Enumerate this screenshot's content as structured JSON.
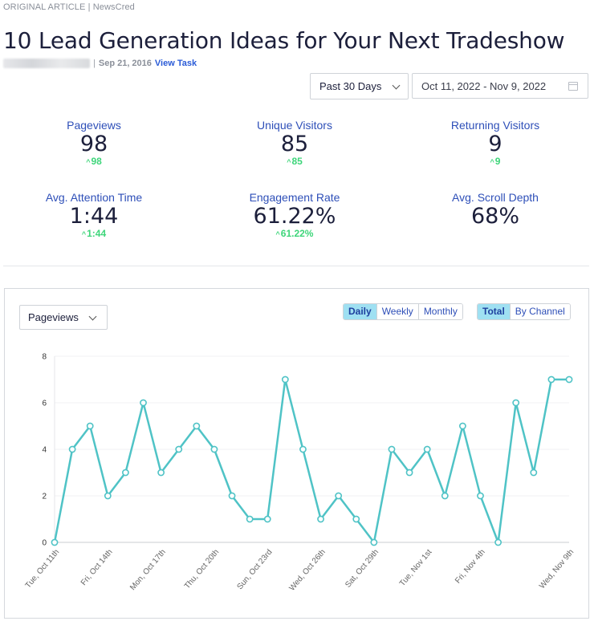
{
  "header": {
    "source_label": "ORIGINAL ARTICLE",
    "source_name": "NewsCred",
    "title": "10 Lead Generation Ideas for Your Next Tradeshow",
    "date": "Sep 21, 2016",
    "view_task": "View Task"
  },
  "filters": {
    "range": "Past 30 Days",
    "date_range": "Oct 11, 2022 - Nov 9, 2022"
  },
  "stats": [
    {
      "label": "Pageviews",
      "value": "98",
      "delta": "98"
    },
    {
      "label": "Unique Visitors",
      "value": "85",
      "delta": "85"
    },
    {
      "label": "Returning Visitors",
      "value": "9",
      "delta": "9"
    },
    {
      "label": "Avg. Attention Time",
      "value": "1:44",
      "delta": "1:44"
    },
    {
      "label": "Engagement Rate",
      "value": "61.22%",
      "delta": "61.22%"
    },
    {
      "label": "Avg. Scroll Depth",
      "value": "68%",
      "delta": ""
    }
  ],
  "chart_controls": {
    "metric": "Pageviews",
    "period_buttons": [
      "Daily",
      "Weekly",
      "Monthly"
    ],
    "period_active": "Daily",
    "view_buttons": [
      "Total",
      "By Channel"
    ],
    "view_active": "Total"
  },
  "colors": {
    "line": "#4fc3c6",
    "accent_blue": "#2e4fb8",
    "delta_green": "#3ed57a",
    "active_button": "#9fe0f2"
  },
  "chart_data": {
    "type": "line",
    "x": [
      "Tue, Oct 11th",
      "Wed, Oct 12th",
      "Thu, Oct 13th",
      "Fri, Oct 14th",
      "Sat, Oct 15th",
      "Sun, Oct 16th",
      "Mon, Oct 17th",
      "Tue, Oct 18th",
      "Wed, Oct 19th",
      "Thu, Oct 20th",
      "Fri, Oct 21st",
      "Sat, Oct 22nd",
      "Sun, Oct 23rd",
      "Mon, Oct 24th",
      "Tue, Oct 25th",
      "Wed, Oct 26th",
      "Thu, Oct 27th",
      "Fri, Oct 28th",
      "Sat, Oct 29th",
      "Sun, Oct 30th",
      "Mon, Oct 31st",
      "Tue, Nov 1st",
      "Wed, Nov 2nd",
      "Thu, Nov 3rd",
      "Fri, Nov 4th",
      "Sat, Nov 5th",
      "Sun, Nov 6th",
      "Mon, Nov 7th",
      "Tue, Nov 8th",
      "Wed, Nov 9th"
    ],
    "x_tick_labels": [
      "Tue, Oct 11th",
      "Fri, Oct 14th",
      "Mon, Oct 17th",
      "Thu, Oct 20th",
      "Sun, Oct 23rd",
      "Wed, Oct 26th",
      "Sat, Oct 29th",
      "Tue, Nov 1st",
      "Fri, Nov 4th",
      "Wed, Nov 9th"
    ],
    "series": [
      {
        "values": [
          0,
          4,
          5,
          2,
          3,
          6,
          3,
          4,
          5,
          4,
          2,
          1,
          1,
          7,
          4,
          1,
          2,
          1,
          0,
          4,
          3,
          4,
          2,
          5,
          2,
          0,
          6,
          3,
          7,
          7
        ]
      }
    ],
    "y_ticks": [
      0,
      2,
      4,
      6,
      8
    ],
    "ylim": [
      0,
      8
    ],
    "grid": true,
    "legend": "none"
  }
}
